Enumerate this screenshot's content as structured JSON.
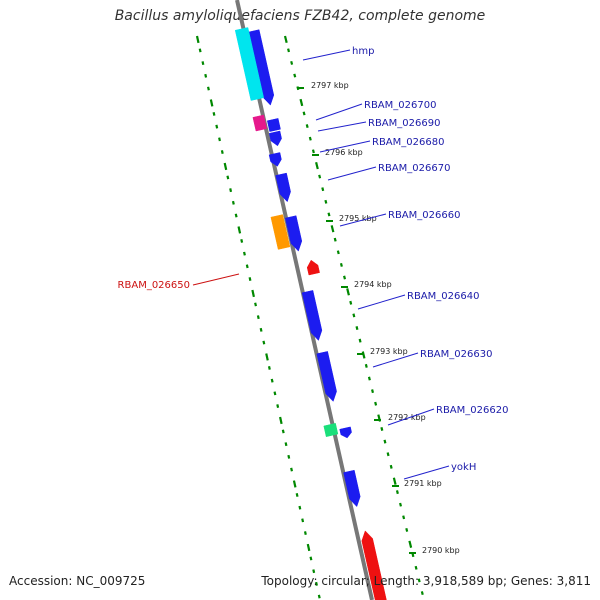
{
  "title": "Bacillus amyloliquefaciens FZB42, complete genome",
  "footer": {
    "accession": "Accession: NC_009725",
    "topology": "Topology: circular; Length: 3,918,589 bp; Genes: 3,811"
  },
  "ticks": [
    {
      "label": "2797 kbp"
    },
    {
      "label": "2796 kbp"
    },
    {
      "label": "2795 kbp"
    },
    {
      "label": "2794 kbp"
    },
    {
      "label": "2793 kbp"
    },
    {
      "label": "2792 kbp"
    },
    {
      "label": "2791 kbp"
    },
    {
      "label": "2790 kbp"
    }
  ],
  "genes": [
    {
      "name": "hmp",
      "color": "#1a1aa8"
    },
    {
      "name": "RBAM_026700",
      "color": "#1a1aa8"
    },
    {
      "name": "RBAM_026690",
      "color": "#1a1aa8"
    },
    {
      "name": "RBAM_026680",
      "color": "#1a1aa8"
    },
    {
      "name": "RBAM_026670",
      "color": "#1a1aa8"
    },
    {
      "name": "RBAM_026660",
      "color": "#1a1aa8"
    },
    {
      "name": "RBAM_026650",
      "color": "#cc1111"
    },
    {
      "name": "RBAM_026640",
      "color": "#1a1aa8"
    },
    {
      "name": "RBAM_026630",
      "color": "#1a1aa8"
    },
    {
      "name": "RBAM_026620",
      "color": "#1a1aa8"
    },
    {
      "name": "yokH",
      "color": "#1a1aa8"
    }
  ],
  "colors": {
    "cds": "#1c1cf0",
    "cds_reverse": "#ee1111",
    "trna": "#00e5ee",
    "misc_magenta": "#e6198c",
    "misc_orange": "#ff9900",
    "misc_green": "#1adf7a",
    "backbone": "#777777",
    "ruler": "#008800"
  }
}
